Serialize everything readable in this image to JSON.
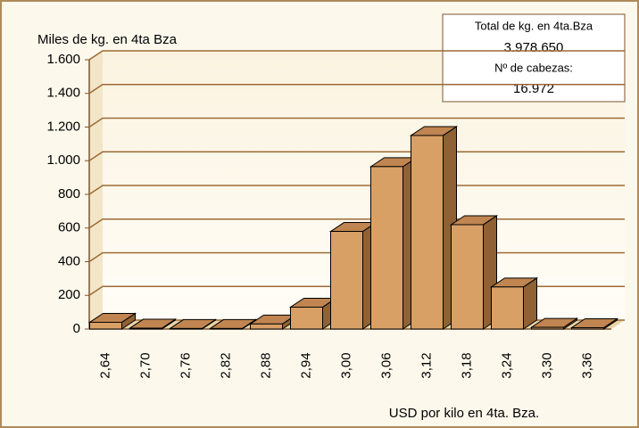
{
  "chart_data": {
    "type": "bar",
    "y_axis_label": "Miles de kg. en 4ta Bza",
    "x_axis_label": "USD por kilo en 4ta. Bza.",
    "annotation": [
      "Total de kg. en 4ta.Bza",
      "3.978.650",
      "Nº de cabezas:",
      "16.972"
    ],
    "categories": [
      "2,64",
      "2,70",
      "2,76",
      "2,82",
      "2,88",
      "2,94",
      "3,00",
      "3,06",
      "3,12",
      "3,18",
      "3,24",
      "3,30",
      "3,36"
    ],
    "values": [
      40,
      5,
      3,
      3,
      30,
      130,
      580,
      965,
      1150,
      620,
      250,
      10,
      8
    ],
    "color": "#d9a066",
    "ylim": [
      0,
      1600
    ],
    "yticks": [
      0,
      200,
      400,
      600,
      800,
      {
        "value": 1000,
        "label": "1.000"
      },
      {
        "value": 1200,
        "label": "1.200"
      },
      {
        "value": 1400,
        "label": "1.400"
      },
      {
        "value": 1600,
        "label": "1.600"
      }
    ],
    "grid": true
  }
}
